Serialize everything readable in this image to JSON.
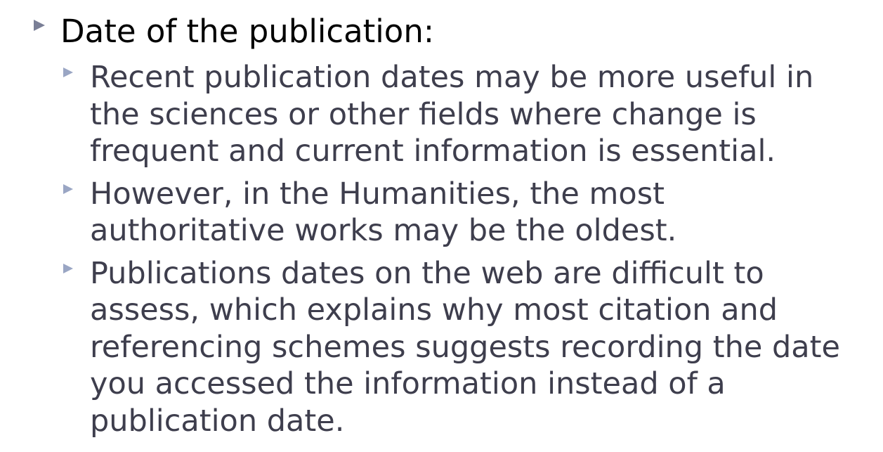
{
  "slide": {
    "heading": "Date of the publication:",
    "items": [
      {
        "lines": [
          "Recent publication dates may be more useful in",
          "the sciences or other fields where change is",
          "frequent and current information is essential."
        ]
      },
      {
        "lines": [
          "However, in the Humanities, the most",
          "authoritative works may be the oldest."
        ]
      },
      {
        "lines": [
          "Publications dates on the web are difficult to",
          "assess, which explains why most citation and",
          "referencing schemes suggests recording the date",
          "you accessed the information instead of a",
          "publication date."
        ]
      }
    ]
  },
  "colors": {
    "heading_text": "#000000",
    "body_text": "#3e3e4d",
    "bullet_primary": "#7a7f96",
    "bullet_secondary": "#9aa6c4"
  },
  "icons": {
    "bullet": "triangle-right-icon"
  }
}
